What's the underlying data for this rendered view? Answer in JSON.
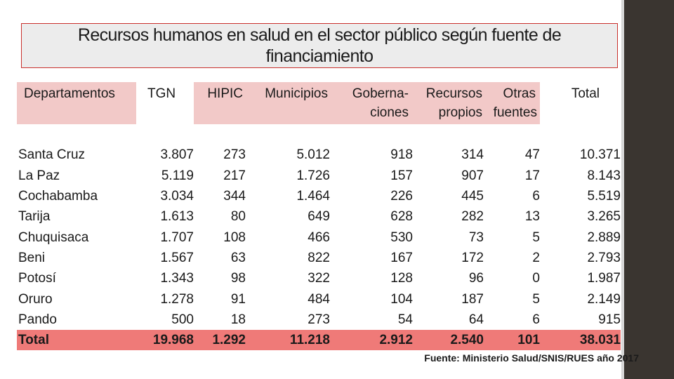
{
  "title": {
    "line1": "Recursos humanos en salud en el sector público según fuente de",
    "line2": "financiamiento"
  },
  "table": {
    "headers": {
      "departamentos": "Departamentos",
      "tgn": "TGN",
      "hipic": "HIPIC",
      "municipios": "Municipios",
      "gobernaciones_1": "Goberna-",
      "gobernaciones_2": "ciones",
      "recursos_1": "Recursos",
      "recursos_2": "propios",
      "otras_1": "Otras",
      "otras_2": "fuentes",
      "total": "Total"
    },
    "rows": [
      [
        "Santa Cruz",
        "3.807",
        "273",
        "5.012",
        "918",
        "314",
        "47",
        "10.371"
      ],
      [
        "La Paz",
        "5.119",
        "217",
        "1.726",
        "157",
        "907",
        "17",
        "8.143"
      ],
      [
        "Cochabamba",
        "3.034",
        "344",
        "1.464",
        "226",
        "445",
        "6",
        "5.519"
      ],
      [
        "Tarija",
        "1.613",
        "80",
        "649",
        "628",
        "282",
        "13",
        "3.265"
      ],
      [
        "Chuquisaca",
        "1.707",
        "108",
        "466",
        "530",
        "73",
        "5",
        "2.889"
      ],
      [
        "Beni",
        "1.567",
        "63",
        "822",
        "167",
        "172",
        "2",
        "2.793"
      ],
      [
        "Potosí",
        "1.343",
        "98",
        "322",
        "128",
        "96",
        "0",
        "1.987"
      ],
      [
        "Oruro",
        "1.278",
        "91",
        "484",
        "104",
        "187",
        "5",
        "2.149"
      ],
      [
        "Pando",
        "500",
        "18",
        "273",
        "54",
        "64",
        "6",
        "915"
      ]
    ],
    "total_row": [
      "Total",
      "19.968",
      "1.292",
      "11.218",
      "2.912",
      "2.540",
      "101",
      "38.031"
    ]
  },
  "source": "Fuente: Ministerio Salud/SNIS/RUES año 2017",
  "colors": {
    "header_bg": "#f2c9c8",
    "total_bg": "#ef7a78",
    "title_border": "#c9302c",
    "title_bg": "#ececec",
    "side_bar": "#3a3530"
  }
}
